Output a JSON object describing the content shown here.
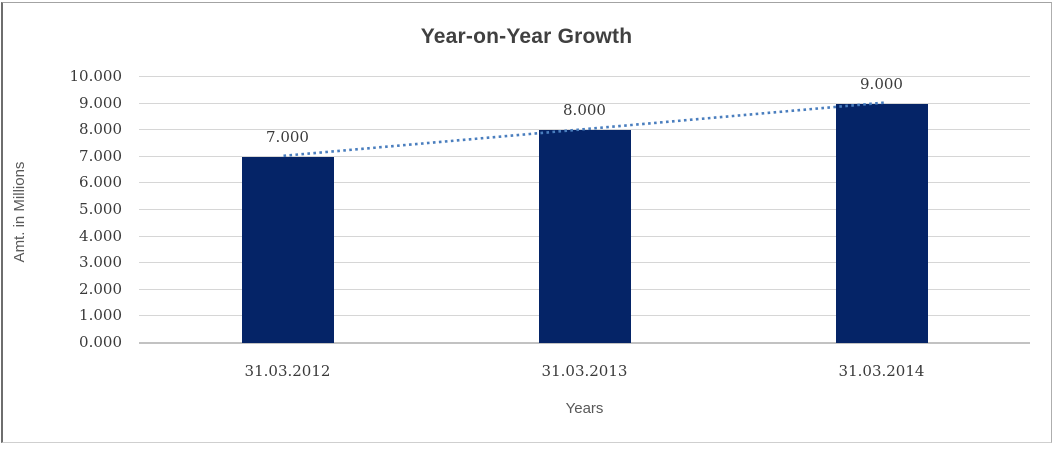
{
  "chart_data": {
    "type": "bar",
    "title": "Year-on-Year Growth",
    "xlabel": "Years",
    "ylabel": "Amt. in Millions",
    "categories": [
      "31.03.2012",
      "31.03.2013",
      "31.03.2014"
    ],
    "values": [
      7,
      8,
      9
    ],
    "data_labels": [
      "7.000",
      "8.000",
      "9.000"
    ],
    "yticks": [
      "0.000",
      "1.000",
      "2.000",
      "3.000",
      "4.000",
      "5.000",
      "6.000",
      "7.000",
      "8.000",
      "9.000",
      "10.000"
    ],
    "ylim": [
      0,
      10
    ],
    "grid": "horizontal",
    "legend": "none",
    "trendline": {
      "type": "linear",
      "style": "dotted",
      "color": "#4a7ebe"
    },
    "colors": {
      "bar": "#052467",
      "gridline": "#d6d6d6",
      "axis_line": "#c2c2c2",
      "title_text": "#404040",
      "tick_text": "#3a3a3a",
      "axis_title_text": "#595959",
      "background": "#ffffff"
    }
  }
}
